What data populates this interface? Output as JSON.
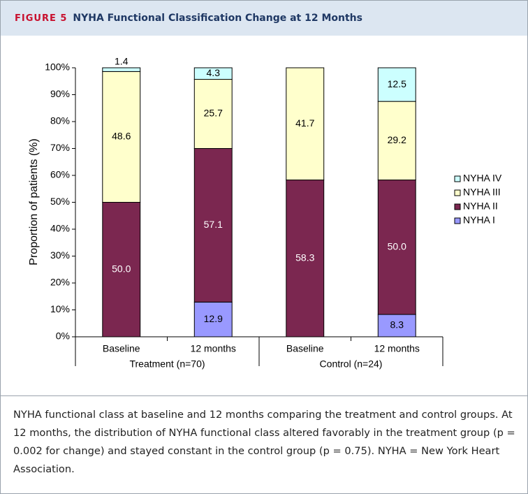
{
  "figure": {
    "label": "FIGURE 5",
    "title": "NYHA Functional Classification Change at 12 Months",
    "caption": "NYHA functional class at baseline and 12 months comparing the treatment and control groups. At 12 months, the distribution of NYHA functional class altered favorably in the treatment group (p = 0.002 for change) and stayed constant in the control group (p = 0.75). NYHA = New York Heart Association."
  },
  "chart_data": {
    "type": "stacked-bar",
    "ylabel": "Proportion of patients (%)",
    "categories": [
      "Baseline",
      "12 months",
      "Baseline",
      "12 months"
    ],
    "group_labels": [
      "Treatment (n=70)",
      "Control (n=24)"
    ],
    "ylim": [
      0,
      100
    ],
    "yticks": [
      {
        "value": 0,
        "label": "0%"
      },
      {
        "value": 10,
        "label": "10%"
      },
      {
        "value": 20,
        "label": "20%"
      },
      {
        "value": 30,
        "label": "30%"
      },
      {
        "value": 40,
        "label": "40%"
      },
      {
        "value": 50,
        "label": "50%"
      },
      {
        "value": 60,
        "label": "60%"
      },
      {
        "value": 70,
        "label": "70%"
      },
      {
        "value": 80,
        "label": "80%"
      },
      {
        "value": 90,
        "label": "90%"
      },
      {
        "value": 100,
        "label": "100%"
      }
    ],
    "legend": "right",
    "series": [
      {
        "name": "NYHA I",
        "color": "#9999ff",
        "values": [
          0,
          12.9,
          0,
          8.3
        ],
        "value_labels": [
          null,
          "12.9",
          null,
          "8.3"
        ]
      },
      {
        "name": "NYHA II",
        "color": "#7b2750",
        "values": [
          50.0,
          57.1,
          58.3,
          50.0
        ],
        "value_labels": [
          "50.0",
          "57.1",
          "58.3",
          "50.0"
        ]
      },
      {
        "name": "NYHA III",
        "color": "#ffffcc",
        "values": [
          48.6,
          25.7,
          41.7,
          29.2
        ],
        "value_labels": [
          "48.6",
          "25.7",
          "41.7",
          "29.2"
        ]
      },
      {
        "name": "NYHA IV",
        "color": "#ccffff",
        "values": [
          1.4,
          4.3,
          0,
          12.5
        ],
        "value_labels": [
          "1.4",
          "4.3",
          null,
          "12.5"
        ]
      }
    ]
  }
}
